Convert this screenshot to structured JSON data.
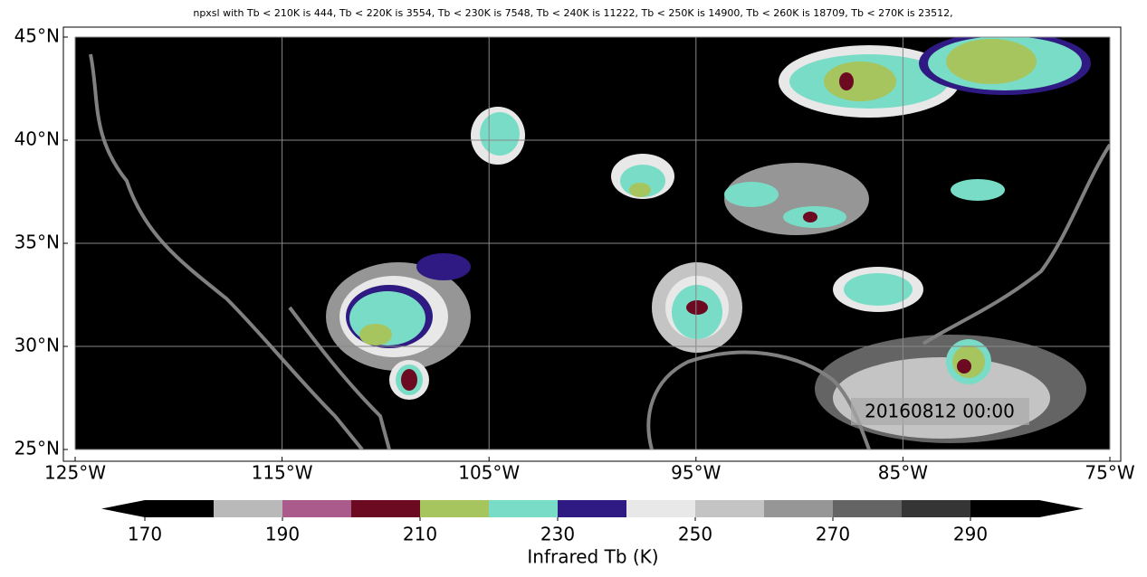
{
  "map": {
    "title": "npxsl with Tb < 210K is 444,  Tb < 220K is 3554,  Tb < 230K is 7548,  Tb < 240K is 11222,  Tb < 250K is 14900,  Tb < 260K is 18709,  Tb < 270K is 23512,",
    "timestamp": "20160812 00:00",
    "lon_ticks": [
      {
        "value": -125,
        "label": "125°W"
      },
      {
        "value": -115,
        "label": "115°W"
      },
      {
        "value": -105,
        "label": "105°W"
      },
      {
        "value": -95,
        "label": "95°W"
      },
      {
        "value": -85,
        "label": "85°W"
      },
      {
        "value": -75,
        "label": "75°W"
      }
    ],
    "lat_ticks": [
      {
        "value": 25,
        "label": "25°N"
      },
      {
        "value": 30,
        "label": "30°N"
      },
      {
        "value": 35,
        "label": "35°N"
      },
      {
        "value": 40,
        "label": "40°N"
      },
      {
        "value": 45,
        "label": "45°N"
      }
    ],
    "lonlim": [
      -125,
      -75
    ],
    "latlim": [
      25,
      45
    ],
    "grid": true
  },
  "colorbar": {
    "label": "Infrared Tb (K)",
    "bounds": [
      170,
      180,
      190,
      200,
      210,
      220,
      230,
      240,
      250,
      260,
      270,
      280,
      290,
      300
    ],
    "colors": [
      "#000000",
      "#b9b9b9",
      "#ab5a8c",
      "#6b0a21",
      "#a6c55e",
      "#79dcc6",
      "#2e1a82",
      "#e8e8e8",
      "#c4c4c4",
      "#969696",
      "#646464",
      "#353535",
      "#000000"
    ],
    "under_color": "#000000",
    "over_color": "#000000",
    "ticks": [
      170,
      190,
      210,
      230,
      250,
      270,
      290
    ]
  }
}
